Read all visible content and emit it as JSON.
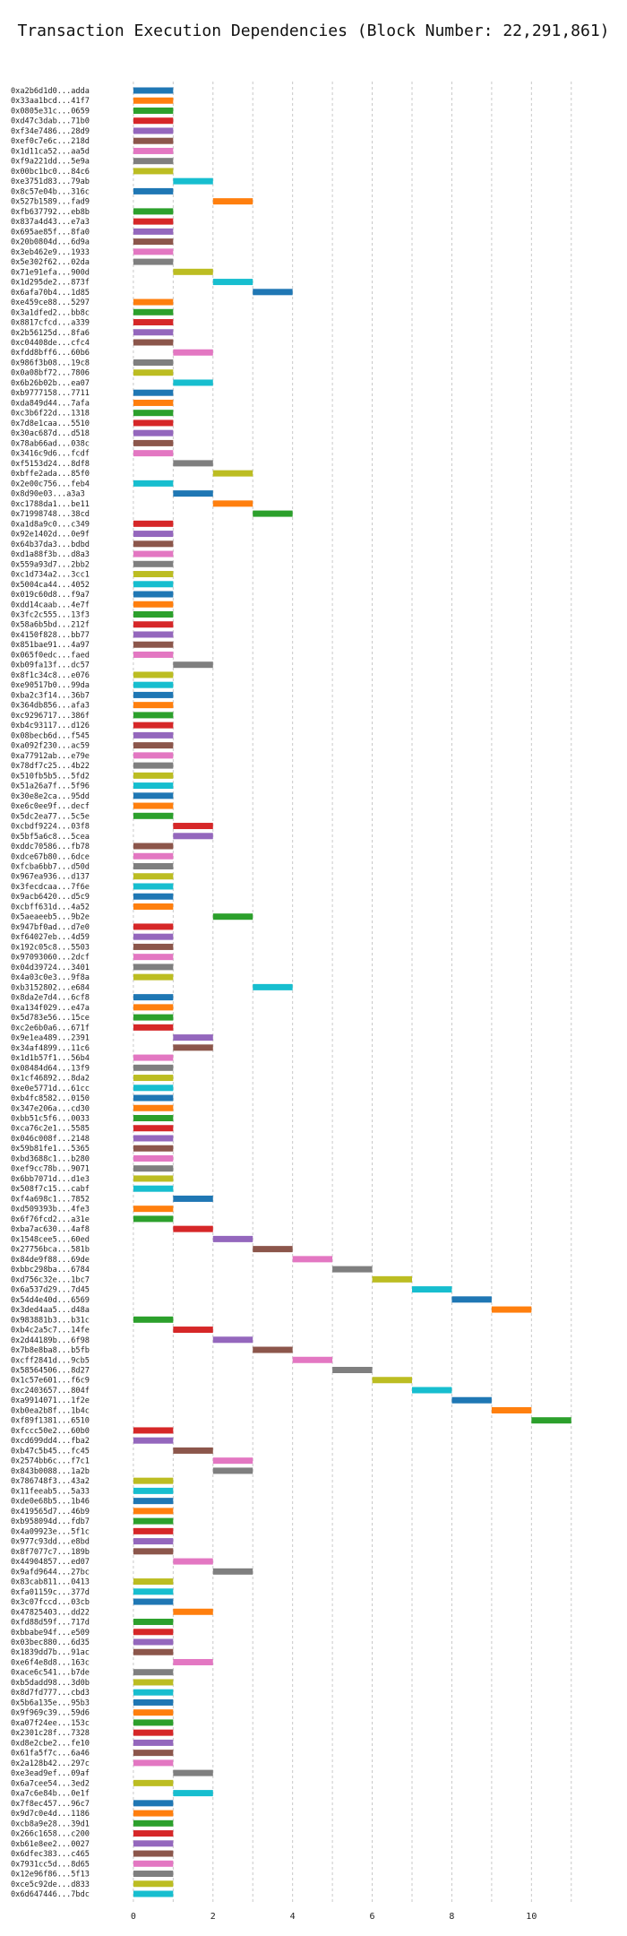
{
  "chart_data": {
    "type": "bar",
    "orientation": "horizontal-gantt",
    "title": "Transaction Execution Dependencies (Block Number: 22,291,861)",
    "xlabel": "",
    "ylabel": "",
    "xlim": [
      -0.2,
      11.5
    ],
    "xticks": [
      0,
      2,
      4,
      6,
      8,
      10
    ],
    "grid": true,
    "palette": [
      "#1f77b4",
      "#ff7f0e",
      "#2ca02c",
      "#d62728",
      "#9467bd",
      "#8c564b",
      "#e377c2",
      "#7f7f7f",
      "#bcbd22",
      "#17becf"
    ],
    "transactions": [
      {
        "label": "0xa2b6d1d0...adda",
        "start": 0
      },
      {
        "label": "0x33aa1bcd...41f7",
        "start": 0
      },
      {
        "label": "0x0805e31c...0659",
        "start": 0
      },
      {
        "label": "0xd47c3dab...71b0",
        "start": 0
      },
      {
        "label": "0xf34e7486...28d9",
        "start": 0
      },
      {
        "label": "0xef0c7e6c...218d",
        "start": 0
      },
      {
        "label": "0x1d11ca52...aa5d",
        "start": 0
      },
      {
        "label": "0xf9a221dd...5e9a",
        "start": 0
      },
      {
        "label": "0x00bc1bc0...84c6",
        "start": 0
      },
      {
        "label": "0xe3751d83...79ab",
        "start": 1
      },
      {
        "label": "0x8c57e04b...316c",
        "start": 0
      },
      {
        "label": "0x527b1589...fad9",
        "start": 2
      },
      {
        "label": "0xfb637792...eb8b",
        "start": 0
      },
      {
        "label": "0x837a4d43...e7a3",
        "start": 0
      },
      {
        "label": "0x695ae85f...8fa0",
        "start": 0
      },
      {
        "label": "0x20b0804d...6d9a",
        "start": 0
      },
      {
        "label": "0x3eb462e9...1933",
        "start": 0
      },
      {
        "label": "0x5e302f62...02da",
        "start": 0
      },
      {
        "label": "0x71e91efa...900d",
        "start": 1
      },
      {
        "label": "0x1d295de2...873f",
        "start": 2
      },
      {
        "label": "0x6afa70b4...1d85",
        "start": 3
      },
      {
        "label": "0xe459ce88...5297",
        "start": 0
      },
      {
        "label": "0x3a1dfed2...bb8c",
        "start": 0
      },
      {
        "label": "0x8817cfcd...a339",
        "start": 0
      },
      {
        "label": "0x2b56125d...8fa6",
        "start": 0
      },
      {
        "label": "0xc04408de...cfc4",
        "start": 0
      },
      {
        "label": "0xfdd8bff6...60b6",
        "start": 1
      },
      {
        "label": "0x986f3b08...19c8",
        "start": 0
      },
      {
        "label": "0x0a08bf72...7806",
        "start": 0
      },
      {
        "label": "0x6b26b02b...ea07",
        "start": 1
      },
      {
        "label": "0xb9777158...7711",
        "start": 0
      },
      {
        "label": "0xda849d44...7afa",
        "start": 0
      },
      {
        "label": "0xc3b6f22d...1318",
        "start": 0
      },
      {
        "label": "0x7d8e1caa...5510",
        "start": 0
      },
      {
        "label": "0x30ac687d...d518",
        "start": 0
      },
      {
        "label": "0x78ab66ad...038c",
        "start": 0
      },
      {
        "label": "0x3416c9d6...fcdf",
        "start": 0
      },
      {
        "label": "0xf5153d24...8df8",
        "start": 1
      },
      {
        "label": "0xbffe2ada...85f0",
        "start": 2
      },
      {
        "label": "0x2e00c756...feb4",
        "start": 0
      },
      {
        "label": "0x8d90e03...a3a3",
        "start": 1
      },
      {
        "label": "0xc1788da1...be11",
        "start": 2
      },
      {
        "label": "0x71998748...38cd",
        "start": 3
      },
      {
        "label": "0xa1d8a9c0...c349",
        "start": 0
      },
      {
        "label": "0x92e1402d...0e9f",
        "start": 0
      },
      {
        "label": "0x64b37da3...bdbd",
        "start": 0
      },
      {
        "label": "0xd1a88f3b...d8a3",
        "start": 0
      },
      {
        "label": "0x559a93d7...2bb2",
        "start": 0
      },
      {
        "label": "0xc1d734a2...3cc1",
        "start": 0
      },
      {
        "label": "0x5004ca44...4052",
        "start": 0
      },
      {
        "label": "0x019c60d8...f9a7",
        "start": 0
      },
      {
        "label": "0xdd14caab...4e7f",
        "start": 0
      },
      {
        "label": "0x3fc2c555...13f3",
        "start": 0
      },
      {
        "label": "0x58a6b5bd...212f",
        "start": 0
      },
      {
        "label": "0x4150f828...bb77",
        "start": 0
      },
      {
        "label": "0x851bae91...4a97",
        "start": 0
      },
      {
        "label": "0x065f0edc...faed",
        "start": 0
      },
      {
        "label": "0xb09fa13f...dc57",
        "start": 1
      },
      {
        "label": "0x8f1c34c8...e076",
        "start": 0
      },
      {
        "label": "0xe90517b0...99da",
        "start": 0
      },
      {
        "label": "0xba2c3f14...36b7",
        "start": 0
      },
      {
        "label": "0x364db856...afa3",
        "start": 0
      },
      {
        "label": "0xc9296717...386f",
        "start": 0
      },
      {
        "label": "0xb4c93117...d126",
        "start": 0
      },
      {
        "label": "0x08becb6d...f545",
        "start": 0
      },
      {
        "label": "0xa092f230...ac59",
        "start": 0
      },
      {
        "label": "0xa77912ab...e79e",
        "start": 0
      },
      {
        "label": "0x78df7c25...4b22",
        "start": 0
      },
      {
        "label": "0x510fb5b5...5fd2",
        "start": 0
      },
      {
        "label": "0x51a26a7f...5f96",
        "start": 0
      },
      {
        "label": "0x30e8e2ca...95dd",
        "start": 0
      },
      {
        "label": "0xe6c0ee9f...decf",
        "start": 0
      },
      {
        "label": "0x5dc2ea77...5c5e",
        "start": 0
      },
      {
        "label": "0xcbdf9224...03f8",
        "start": 1
      },
      {
        "label": "0x5bf5a6c8...5cea",
        "start": 1
      },
      {
        "label": "0xddc70586...fb78",
        "start": 0
      },
      {
        "label": "0xdce67b80...6dce",
        "start": 0
      },
      {
        "label": "0xfcba6bb7...d50d",
        "start": 0
      },
      {
        "label": "0x967ea936...d137",
        "start": 0
      },
      {
        "label": "0x3fecdcaa...7f6e",
        "start": 0
      },
      {
        "label": "0x9acb6420...d5c9",
        "start": 0
      },
      {
        "label": "0xcbff631d...4a52",
        "start": 0
      },
      {
        "label": "0x5aeaeeb5...9b2e",
        "start": 2
      },
      {
        "label": "0x947bf0ad...d7e0",
        "start": 0
      },
      {
        "label": "0xf64027eb...4d59",
        "start": 0
      },
      {
        "label": "0x192c05c8...5503",
        "start": 0
      },
      {
        "label": "0x97093060...2dcf",
        "start": 0
      },
      {
        "label": "0x04d39724...3401",
        "start": 0
      },
      {
        "label": "0x4a03c0e3...9f8a",
        "start": 0
      },
      {
        "label": "0xb3152802...e684",
        "start": 3
      },
      {
        "label": "0x8da2e7d4...6cf8",
        "start": 0
      },
      {
        "label": "0xa134f029...e47a",
        "start": 0
      },
      {
        "label": "0x5d783e56...15ce",
        "start": 0
      },
      {
        "label": "0xc2e6b0a6...671f",
        "start": 0
      },
      {
        "label": "0x9e1ea489...2391",
        "start": 1
      },
      {
        "label": "0x34af4899...11c6",
        "start": 1
      },
      {
        "label": "0x1d1b57f1...56b4",
        "start": 0
      },
      {
        "label": "0x08484d64...13f9",
        "start": 0
      },
      {
        "label": "0x1cf46892...8da2",
        "start": 0
      },
      {
        "label": "0xe0e5771d...61cc",
        "start": 0
      },
      {
        "label": "0xb4fc8582...0150",
        "start": 0
      },
      {
        "label": "0x347e206a...cd30",
        "start": 0
      },
      {
        "label": "0xbb51c5f6...0033",
        "start": 0
      },
      {
        "label": "0xca76c2e1...5585",
        "start": 0
      },
      {
        "label": "0x046c008f...2148",
        "start": 0
      },
      {
        "label": "0x59b81fe1...5365",
        "start": 0
      },
      {
        "label": "0xbd3688c1...b280",
        "start": 0
      },
      {
        "label": "0xef9cc78b...9071",
        "start": 0
      },
      {
        "label": "0x6bb7071d...d1e3",
        "start": 0
      },
      {
        "label": "0x508f7c15...cabf",
        "start": 0
      },
      {
        "label": "0xf4a698c1...7852",
        "start": 1
      },
      {
        "label": "0xd509393b...4fe3",
        "start": 0
      },
      {
        "label": "0x6f76fcd2...a31e",
        "start": 0
      },
      {
        "label": "0xba7ac630...4af8",
        "start": 1
      },
      {
        "label": "0x1548cee5...60ed",
        "start": 2
      },
      {
        "label": "0x27756bca...581b",
        "start": 3
      },
      {
        "label": "0x84de9f88...69de",
        "start": 4
      },
      {
        "label": "0xbbc298ba...6784",
        "start": 5
      },
      {
        "label": "0xd756c32e...1bc7",
        "start": 6
      },
      {
        "label": "0x6a537d29...7d45",
        "start": 7
      },
      {
        "label": "0x54d4e40d...6569",
        "start": 8
      },
      {
        "label": "0x3ded4aa5...d48a",
        "start": 9
      },
      {
        "label": "0x983881b3...b31c",
        "start": 0
      },
      {
        "label": "0xb4c2a5c7...14fe",
        "start": 1
      },
      {
        "label": "0x2d44189b...6f98",
        "start": 2
      },
      {
        "label": "0x7b8e8ba8...b5fb",
        "start": 3
      },
      {
        "label": "0xcff2841d...9cb5",
        "start": 4
      },
      {
        "label": "0x58564506...8d27",
        "start": 5
      },
      {
        "label": "0x1c57e601...f6c9",
        "start": 6
      },
      {
        "label": "0xc2403657...804f",
        "start": 7
      },
      {
        "label": "0xa9914071...1f2e",
        "start": 8
      },
      {
        "label": "0xb0ea2b8f...1b4c",
        "start": 9
      },
      {
        "label": "0xf89f1381...6510",
        "start": 10
      },
      {
        "label": "0xfccc50e2...60b0",
        "start": 0
      },
      {
        "label": "0xcd699dd4...fba2",
        "start": 0
      },
      {
        "label": "0xb47c5b45...fc45",
        "start": 1
      },
      {
        "label": "0x2574bb6c...f7c1",
        "start": 2
      },
      {
        "label": "0x843b0088...1a2b",
        "start": 2
      },
      {
        "label": "0x786748f3...43a2",
        "start": 0
      },
      {
        "label": "0x11feeab5...5a33",
        "start": 0
      },
      {
        "label": "0xde0e68b5...1b46",
        "start": 0
      },
      {
        "label": "0x419565d7...46b9",
        "start": 0
      },
      {
        "label": "0xb958094d...fdb7",
        "start": 0
      },
      {
        "label": "0x4a09923e...5f1c",
        "start": 0
      },
      {
        "label": "0x977c93dd...e8bd",
        "start": 0
      },
      {
        "label": "0x8f7077c7...189b",
        "start": 0
      },
      {
        "label": "0x44904857...ed07",
        "start": 1
      },
      {
        "label": "0x9afd9644...27bc",
        "start": 2
      },
      {
        "label": "0x83cab811...0413",
        "start": 0
      },
      {
        "label": "0xfa01159c...377d",
        "start": 0
      },
      {
        "label": "0x3c07fccd...03cb",
        "start": 0
      },
      {
        "label": "0x47825403...dd22",
        "start": 1
      },
      {
        "label": "0xfd88d59f...717d",
        "start": 0
      },
      {
        "label": "0xbbabe94f...e509",
        "start": 0
      },
      {
        "label": "0x03bec880...6d35",
        "start": 0
      },
      {
        "label": "0x1839dd7b...91ac",
        "start": 0
      },
      {
        "label": "0xe6f4e8d8...163c",
        "start": 1
      },
      {
        "label": "0xace6c541...b7de",
        "start": 0
      },
      {
        "label": "0xb5dadd98...3d0b",
        "start": 0
      },
      {
        "label": "0x8d7fd777...cbd3",
        "start": 0
      },
      {
        "label": "0x5b6a135e...95b3",
        "start": 0
      },
      {
        "label": "0x9f969c39...59d6",
        "start": 0
      },
      {
        "label": "0xa07f24ee...153c",
        "start": 0
      },
      {
        "label": "0x2301c28f...7328",
        "start": 0
      },
      {
        "label": "0xd8e2cbe2...fe10",
        "start": 0
      },
      {
        "label": "0x61fa5f7c...6a46",
        "start": 0
      },
      {
        "label": "0x2a128b42...297c",
        "start": 0
      },
      {
        "label": "0xe3ead9ef...09af",
        "start": 1
      },
      {
        "label": "0x6a7cee54...3ed2",
        "start": 0
      },
      {
        "label": "0xa7c6e84b...0e1f",
        "start": 1
      },
      {
        "label": "0x7f8ec457...96c7",
        "start": 0
      },
      {
        "label": "0x9d7c0e4d...1186",
        "start": 0
      },
      {
        "label": "0xcb8a9e28...39d1",
        "start": 0
      },
      {
        "label": "0x266c1658...c200",
        "start": 0
      },
      {
        "label": "0xb61e8ee2...0027",
        "start": 0
      },
      {
        "label": "0x6dfec383...c465",
        "start": 0
      },
      {
        "label": "0x7931cc5d...8d65",
        "start": 0
      },
      {
        "label": "0x12e96f86...5f13",
        "start": 0
      },
      {
        "label": "0xce5c92de...d833",
        "start": 0
      },
      {
        "label": "0x6d647446...7bdc",
        "start": 0
      }
    ]
  }
}
